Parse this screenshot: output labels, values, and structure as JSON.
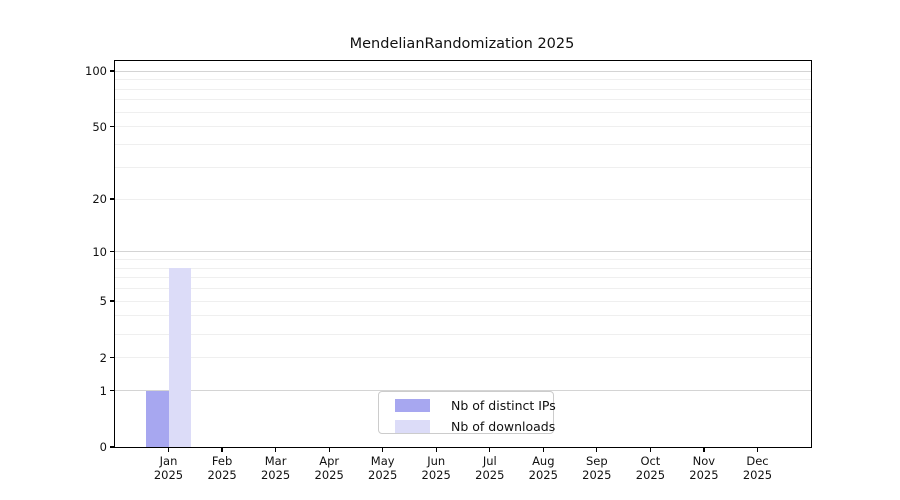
{
  "chart_data": {
    "type": "bar",
    "title": "MendelianRandomization 2025",
    "xlabel": "",
    "ylabel": "",
    "y_scale": "log(1+y)",
    "ylim": [
      0,
      100
    ],
    "yticks": [
      0,
      1,
      2,
      5,
      10,
      20,
      50,
      100
    ],
    "grid": {
      "orientation": "horizontal",
      "major_values": [
        1,
        10,
        100
      ],
      "minor_values": [
        2,
        3,
        4,
        5,
        6,
        7,
        8,
        9,
        20,
        30,
        40,
        50,
        60,
        70,
        80,
        90
      ],
      "major_color": "#d4d4d4",
      "minor_color": "#efefef"
    },
    "categories": [
      "Jan",
      "Feb",
      "Mar",
      "Apr",
      "May",
      "Jun",
      "Jul",
      "Aug",
      "Sep",
      "Oct",
      "Nov",
      "Dec"
    ],
    "year": "2025",
    "series": [
      {
        "name": "Nb of distinct IPs",
        "color": "#a7a7f0",
        "values": [
          1,
          0,
          0,
          0,
          0,
          0,
          0,
          0,
          0,
          0,
          0,
          0
        ]
      },
      {
        "name": "Nb of downloads",
        "color": "#dcdcf8",
        "values": [
          8,
          0,
          0,
          0,
          0,
          0,
          0,
          0,
          0,
          0,
          0,
          0
        ]
      }
    ],
    "legend": {
      "position": "inside-bottom-center",
      "items": [
        "Nb of distinct IPs",
        "Nb of downloads"
      ]
    },
    "axis_color": "#000000"
  }
}
